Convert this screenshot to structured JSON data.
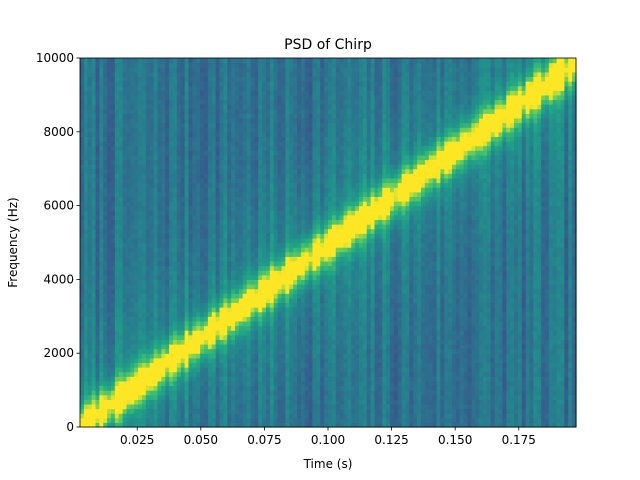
{
  "chart_data": {
    "type": "heatmap",
    "title": "PSD of Chirp",
    "xlabel": "Time (s)",
    "ylabel": "Frequency (Hz)",
    "xlim": [
      0.0025,
      0.1975
    ],
    "ylim": [
      0,
      10000
    ],
    "x_ticks": [
      0.025,
      0.05,
      0.075,
      0.1,
      0.125,
      0.15,
      0.175
    ],
    "x_tick_labels": [
      "0.025",
      "0.050",
      "0.075",
      "0.100",
      "0.125",
      "0.150",
      "0.175"
    ],
    "y_ticks": [
      0,
      2000,
      4000,
      6000,
      8000,
      10000
    ],
    "y_tick_labels": [
      "0",
      "2000",
      "4000",
      "6000",
      "8000",
      "10000"
    ],
    "colormap": "viridis",
    "grid": false,
    "ridge": {
      "description": "linear chirp, peak power follows f = 50000 * t",
      "start": {
        "t": 0.0025,
        "f": 0
      },
      "end": {
        "t": 0.1975,
        "f": 9875
      }
    },
    "time_bins": 128,
    "frequency_bins": 80
  },
  "colors": {
    "background": "#ffffff",
    "peak": "#fde725",
    "floor": "#440154"
  }
}
